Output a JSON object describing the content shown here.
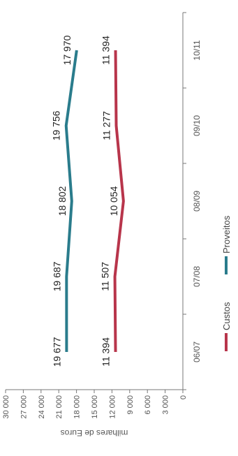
{
  "chart_data": {
    "type": "line",
    "title": "",
    "ylabel": "milhares de Euros",
    "xlabel": "",
    "categories": [
      "06/07",
      "07/08",
      "08/09",
      "09/10",
      "10/11"
    ],
    "ylim": [
      0,
      30000
    ],
    "yticks": [
      0,
      3000,
      6000,
      9000,
      12000,
      15000,
      18000,
      21000,
      24000,
      27000,
      30000
    ],
    "ytick_labels": [
      "0",
      "3 000",
      "6 000",
      "9 000",
      "12 000",
      "15 000",
      "18 000",
      "21 000",
      "24 000",
      "27 000",
      "30 000"
    ],
    "series": [
      {
        "name": "Custos",
        "color": "#b8354b",
        "values": [
          11394,
          11507,
          10054,
          11277,
          11394
        ],
        "labels": [
          "11 394",
          "11 507",
          "10 054",
          "11 277",
          "11 394"
        ]
      },
      {
        "name": "Proveitos",
        "color": "#2a7c8c",
        "values": [
          19677,
          19687,
          18802,
          19756,
          17970
        ],
        "labels": [
          "19 677",
          "19 687",
          "18 802",
          "19 756",
          "17 970"
        ]
      }
    ],
    "legend_position": "bottom",
    "grid": false
  }
}
